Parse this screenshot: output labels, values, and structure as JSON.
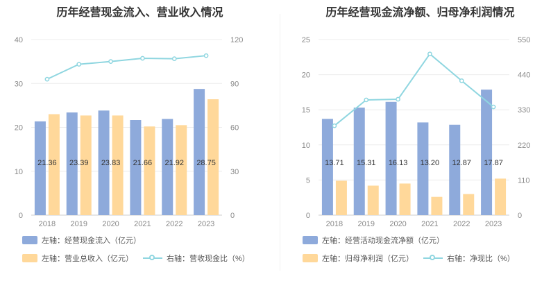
{
  "chart_data": [
    {
      "type": "bar",
      "title": "历年经营现金流入、营业收入情况",
      "categories": [
        "2018",
        "2019",
        "2020",
        "2021",
        "2022",
        "2023"
      ],
      "left_ylim": [
        0,
        40
      ],
      "left_yticks": [
        "0",
        "10",
        "20",
        "30",
        "40"
      ],
      "right_ylim": [
        0,
        120
      ],
      "right_yticks": [
        "0",
        "30",
        "60",
        "90",
        "120"
      ],
      "grid": true,
      "legend_position": "bottom",
      "series": [
        {
          "name": "左轴：经营现金流入（亿元）",
          "axis": "left",
          "kind": "bar",
          "color": "#8eaadb",
          "values": [
            21.36,
            23.39,
            23.83,
            21.66,
            21.92,
            28.75
          ],
          "labels": [
            "21.36",
            "23.39",
            "23.83",
            "21.66",
            "21.92",
            "28.75"
          ]
        },
        {
          "name": "左轴：营业总收入（亿元）",
          "axis": "left",
          "kind": "bar",
          "color": "#ffd89a",
          "values": [
            23.0,
            22.7,
            22.7,
            20.2,
            20.5,
            26.4
          ]
        },
        {
          "name": "右轴：营收现金比（%）",
          "axis": "right",
          "kind": "line",
          "color": "#8fd6e0",
          "values": [
            92.9,
            103.1,
            105.0,
            107.2,
            106.9,
            109.0
          ]
        }
      ]
    },
    {
      "type": "bar",
      "title": "历年经营现金流净额、归母净利润情况",
      "categories": [
        "2018",
        "2019",
        "2020",
        "2021",
        "2022",
        "2023"
      ],
      "left_ylim": [
        0,
        25
      ],
      "left_yticks": [
        "0",
        "5",
        "10",
        "15",
        "20",
        "25"
      ],
      "right_ylim": [
        0,
        550
      ],
      "right_yticks": [
        "0",
        "110",
        "220",
        "330",
        "440",
        "550"
      ],
      "grid": true,
      "legend_position": "bottom",
      "series": [
        {
          "name": "左轴：经营活动现金流净额（亿元）",
          "axis": "left",
          "kind": "bar",
          "color": "#8eaadb",
          "values": [
            13.71,
            15.31,
            16.13,
            13.2,
            12.87,
            17.87
          ],
          "labels": [
            "13.71",
            "15.31",
            "16.13",
            "13.20",
            "12.87",
            "17.87"
          ]
        },
        {
          "name": "左轴：归母净利润（亿元）",
          "axis": "left",
          "kind": "bar",
          "color": "#ffd89a",
          "values": [
            4.9,
            4.2,
            4.5,
            2.6,
            3.0,
            5.2
          ]
        },
        {
          "name": "右轴：净现比（%）",
          "axis": "right",
          "kind": "line",
          "color": "#8fd6e0",
          "values": [
            280,
            361,
            363,
            505,
            421,
            339
          ]
        }
      ]
    }
  ]
}
